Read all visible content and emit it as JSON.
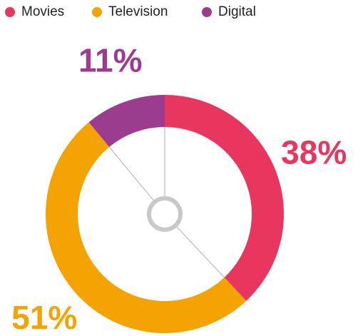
{
  "chart_data": {
    "type": "donut",
    "categories": [
      "Movies",
      "Television",
      "Digital"
    ],
    "values": [
      38,
      51,
      11
    ],
    "value_labels": [
      "38%",
      "51%",
      "11%"
    ],
    "colors": [
      "#e8365f",
      "#f4a300",
      "#9b3c8f"
    ],
    "legend": "top-left"
  }
}
